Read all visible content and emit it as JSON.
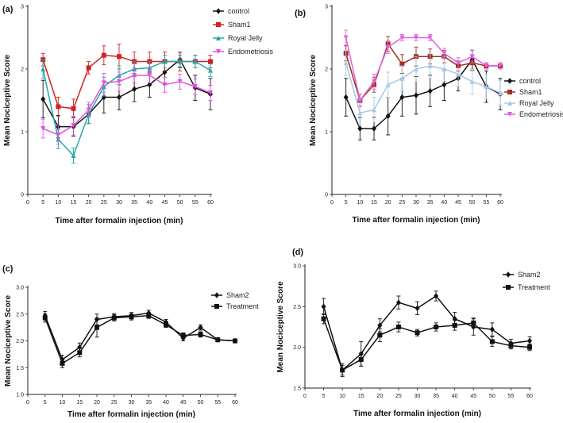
{
  "chart_data": [
    {
      "panel_label": "(a)",
      "type": "line",
      "xlabel": "Time after formalin injection (min)",
      "ylabel": "Mean Nociceptive Score",
      "x": [
        5,
        10,
        15,
        20,
        25,
        30,
        35,
        40,
        45,
        50,
        55,
        60
      ],
      "xlim": [
        0,
        60
      ],
      "ylim": [
        0,
        3
      ],
      "xticks": [
        "0",
        "5",
        "10",
        "15",
        "20",
        "25",
        "30",
        "35",
        "40",
        "45",
        "50",
        "55",
        "60"
      ],
      "yticks": [
        "0",
        "1",
        "2",
        "3"
      ],
      "legend_position": "top-right",
      "series": [
        {
          "name": "control",
          "color": "#111111",
          "marker": "diamond",
          "values": [
            1.52,
            1.08,
            1.08,
            1.28,
            1.55,
            1.55,
            1.68,
            1.75,
            1.95,
            2.15,
            1.7,
            1.6
          ],
          "err": [
            0.3,
            0.18,
            0.15,
            0.15,
            0.25,
            0.2,
            0.2,
            0.2,
            0.2,
            0.12,
            0.2,
            0.25
          ]
        },
        {
          "name": "Sham1",
          "color": "#d42020",
          "marker": "square",
          "values": [
            2.15,
            1.4,
            1.37,
            2.02,
            2.22,
            2.2,
            2.12,
            2.12,
            2.12,
            2.12,
            2.12,
            2.12
          ],
          "err": [
            0.1,
            0.15,
            0.15,
            0.1,
            0.15,
            0.2,
            0.15,
            0.15,
            0.15,
            0.15,
            0.1,
            0.1
          ]
        },
        {
          "name": "Royal Jelly",
          "color": "#1fa8a8",
          "marker": "triangle",
          "values": [
            2.0,
            0.88,
            0.62,
            1.28,
            1.72,
            1.9,
            2.0,
            2.02,
            2.12,
            2.12,
            2.12,
            1.98
          ],
          "err": [
            0.15,
            0.15,
            0.12,
            0.15,
            0.15,
            0.15,
            0.12,
            0.1,
            0.1,
            0.1,
            0.1,
            0.1
          ]
        },
        {
          "name": "Endometriosis",
          "color": "#e050e0",
          "marker": "triangle-down",
          "values": [
            1.05,
            0.95,
            1.1,
            1.35,
            1.78,
            1.8,
            1.9,
            1.9,
            1.75,
            1.8,
            1.72,
            1.62
          ],
          "err": [
            0.15,
            0.15,
            0.15,
            0.12,
            0.15,
            0.15,
            0.12,
            0.12,
            0.12,
            0.12,
            0.12,
            0.12
          ]
        }
      ]
    },
    {
      "panel_label": "(b)",
      "type": "line",
      "xlabel": "Time after formalin injection (min)",
      "ylabel": "Mean Nociceptive Score",
      "x": [
        5,
        10,
        15,
        20,
        25,
        30,
        35,
        40,
        45,
        50,
        55,
        60
      ],
      "xlim": [
        0,
        60
      ],
      "ylim": [
        0,
        3
      ],
      "xticks": [
        "0",
        "5",
        "10",
        "15",
        "20",
        "25",
        "30",
        "35",
        "40",
        "45",
        "50",
        "55",
        "60"
      ],
      "yticks": [
        "0",
        "1",
        "2",
        "3"
      ],
      "legend_position": "center-left",
      "series": [
        {
          "name": "control",
          "color": "#111111",
          "marker": "diamond",
          "values": [
            1.55,
            1.05,
            1.05,
            1.25,
            1.55,
            1.58,
            1.65,
            1.75,
            1.85,
            2.15,
            1.72,
            1.6
          ],
          "err": [
            0.3,
            0.18,
            0.18,
            0.3,
            0.3,
            0.3,
            0.25,
            0.25,
            0.2,
            0.15,
            0.25,
            0.25
          ]
        },
        {
          "name": "Sham1",
          "color": "#a03020",
          "marker": "square",
          "values": [
            2.25,
            1.5,
            1.75,
            2.4,
            2.08,
            2.2,
            2.2,
            2.2,
            2.05,
            2.1,
            2.05,
            2.05
          ],
          "err": [
            0.12,
            0.1,
            0.12,
            0.12,
            0.15,
            0.15,
            0.12,
            0.1,
            0.08,
            0.12,
            0.05,
            0.05
          ]
        },
        {
          "name": "Royal Jelly",
          "color": "#a8c8e8",
          "marker": "triangle",
          "values": [
            2.1,
            1.3,
            1.35,
            1.75,
            1.85,
            2.0,
            2.05,
            2.0,
            1.92,
            1.8,
            1.72,
            1.62
          ],
          "err": [
            0.2,
            0.2,
            0.2,
            0.2,
            0.2,
            0.2,
            0.2,
            0.2,
            0.2,
            0.2,
            0.2,
            0.2
          ]
        },
        {
          "name": "Endometriosis",
          "color": "#e060e0",
          "marker": "triangle-down",
          "values": [
            2.5,
            1.5,
            1.8,
            2.35,
            2.5,
            2.5,
            2.5,
            2.25,
            2.1,
            2.2,
            2.05,
            2.05
          ],
          "err": [
            0.12,
            0.1,
            0.12,
            0.1,
            0.05,
            0.05,
            0.05,
            0.08,
            0.08,
            0.1,
            0.05,
            0.05
          ]
        }
      ]
    },
    {
      "panel_label": "(c)",
      "type": "line",
      "xlabel": "Time after formalin injection (min)",
      "ylabel": "Mean Nociceptive Score",
      "x": [
        5,
        10,
        15,
        20,
        25,
        30,
        35,
        40,
        45,
        50,
        55,
        60
      ],
      "xlim": [
        0,
        60
      ],
      "ylim": [
        1.0,
        3.0
      ],
      "xticks": [
        "0",
        "5",
        "10",
        "15",
        "20",
        "25",
        "30",
        "35",
        "40",
        "45",
        "50",
        "55",
        "60"
      ],
      "yticks": [
        "1.0",
        "1.5",
        "2.0",
        "2.5",
        "3.0"
      ],
      "legend_position": "top-right",
      "series": [
        {
          "name": "Sham2",
          "color": "#111111",
          "marker": "diamond",
          "values": [
            2.47,
            1.65,
            1.88,
            2.4,
            2.45,
            2.47,
            2.52,
            2.35,
            2.05,
            2.25,
            2.02,
            2.0
          ],
          "err": [
            0.08,
            0.08,
            0.08,
            0.1,
            0.06,
            0.06,
            0.05,
            0.05,
            0.05,
            0.05,
            0.03,
            0.03
          ]
        },
        {
          "name": "Treatment",
          "color": "#111111",
          "marker": "square",
          "values": [
            2.43,
            1.58,
            1.78,
            2.25,
            2.43,
            2.45,
            2.47,
            2.3,
            2.1,
            2.12,
            2.02,
            2.0
          ],
          "err": [
            0.08,
            0.08,
            0.08,
            0.18,
            0.06,
            0.06,
            0.05,
            0.05,
            0.05,
            0.05,
            0.03,
            0.03
          ]
        }
      ]
    },
    {
      "panel_label": "(d)",
      "type": "line",
      "xlabel": "Time after formalin injection (min)",
      "ylabel": "Mean Nociceptive Score",
      "x": [
        5,
        10,
        15,
        20,
        25,
        30,
        35,
        40,
        45,
        50,
        55,
        60
      ],
      "xlim": [
        0,
        60
      ],
      "ylim": [
        1.5,
        3.0
      ],
      "xticks": [
        "0",
        "5",
        "10",
        "15",
        "20",
        "25",
        "30",
        "35",
        "40",
        "45",
        "50",
        "55",
        "60"
      ],
      "yticks": [
        "1.5",
        "2.0",
        "2.5",
        "3.0"
      ],
      "legend_position": "top-right",
      "series": [
        {
          "name": "Sham2",
          "color": "#111111",
          "marker": "diamond",
          "values": [
            2.5,
            1.72,
            1.92,
            2.27,
            2.55,
            2.48,
            2.63,
            2.35,
            2.25,
            2.22,
            2.05,
            2.08
          ],
          "err": [
            0.1,
            0.08,
            0.15,
            0.08,
            0.08,
            0.08,
            0.06,
            0.08,
            0.1,
            0.08,
            0.05,
            0.05
          ]
        },
        {
          "name": "Treatment",
          "color": "#111111",
          "marker": "square",
          "values": [
            2.35,
            1.72,
            1.85,
            2.15,
            2.25,
            2.18,
            2.25,
            2.27,
            2.3,
            2.07,
            2.02,
            2.0
          ],
          "err": [
            0.06,
            0.06,
            0.08,
            0.08,
            0.06,
            0.04,
            0.05,
            0.06,
            0.06,
            0.06,
            0.04,
            0.04
          ]
        }
      ]
    }
  ]
}
